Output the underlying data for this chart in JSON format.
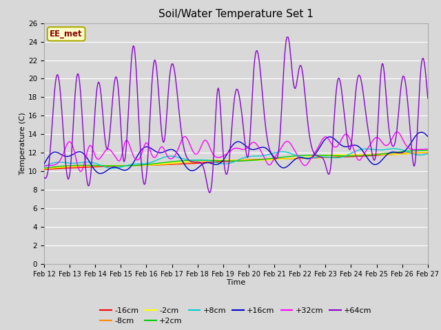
{
  "title": "Soil/Water Temperature Set 1",
  "xlabel": "Time",
  "ylabel": "Temperature (C)",
  "ylim": [
    0,
    26
  ],
  "yticks": [
    0,
    2,
    4,
    6,
    8,
    10,
    12,
    14,
    16,
    18,
    20,
    22,
    24,
    26
  ],
  "annotation_text": "EE_met",
  "annotation_bg": "#ffffcc",
  "annotation_border": "#aaaa00",
  "annotation_text_color": "#880000",
  "bg_color": "#d8d8d8",
  "plot_bg_color": "#d8d8d8",
  "grid_color": "#ffffff",
  "series_colors": {
    "-16cm": "#ff0000",
    "-8cm": "#ff8800",
    "-2cm": "#ffff00",
    "+2cm": "#00cc00",
    "+8cm": "#00cccc",
    "+16cm": "#0000cc",
    "+32cm": "#ff00ff",
    "+64cm": "#8800cc"
  },
  "x_ticks": [
    12,
    13,
    14,
    15,
    16,
    17,
    18,
    19,
    20,
    21,
    22,
    23,
    24,
    25,
    26,
    27
  ],
  "x_tick_labels": [
    "Feb 12",
    "Feb 13",
    "Feb 14",
    "Feb 15",
    "Feb 16",
    "Feb 17",
    "Feb 18",
    "Feb 19",
    "Feb 20",
    "Feb 21",
    "Feb 22",
    "Feb 23",
    "Feb 24",
    "Feb 25",
    "Feb 26",
    "Feb 27"
  ]
}
